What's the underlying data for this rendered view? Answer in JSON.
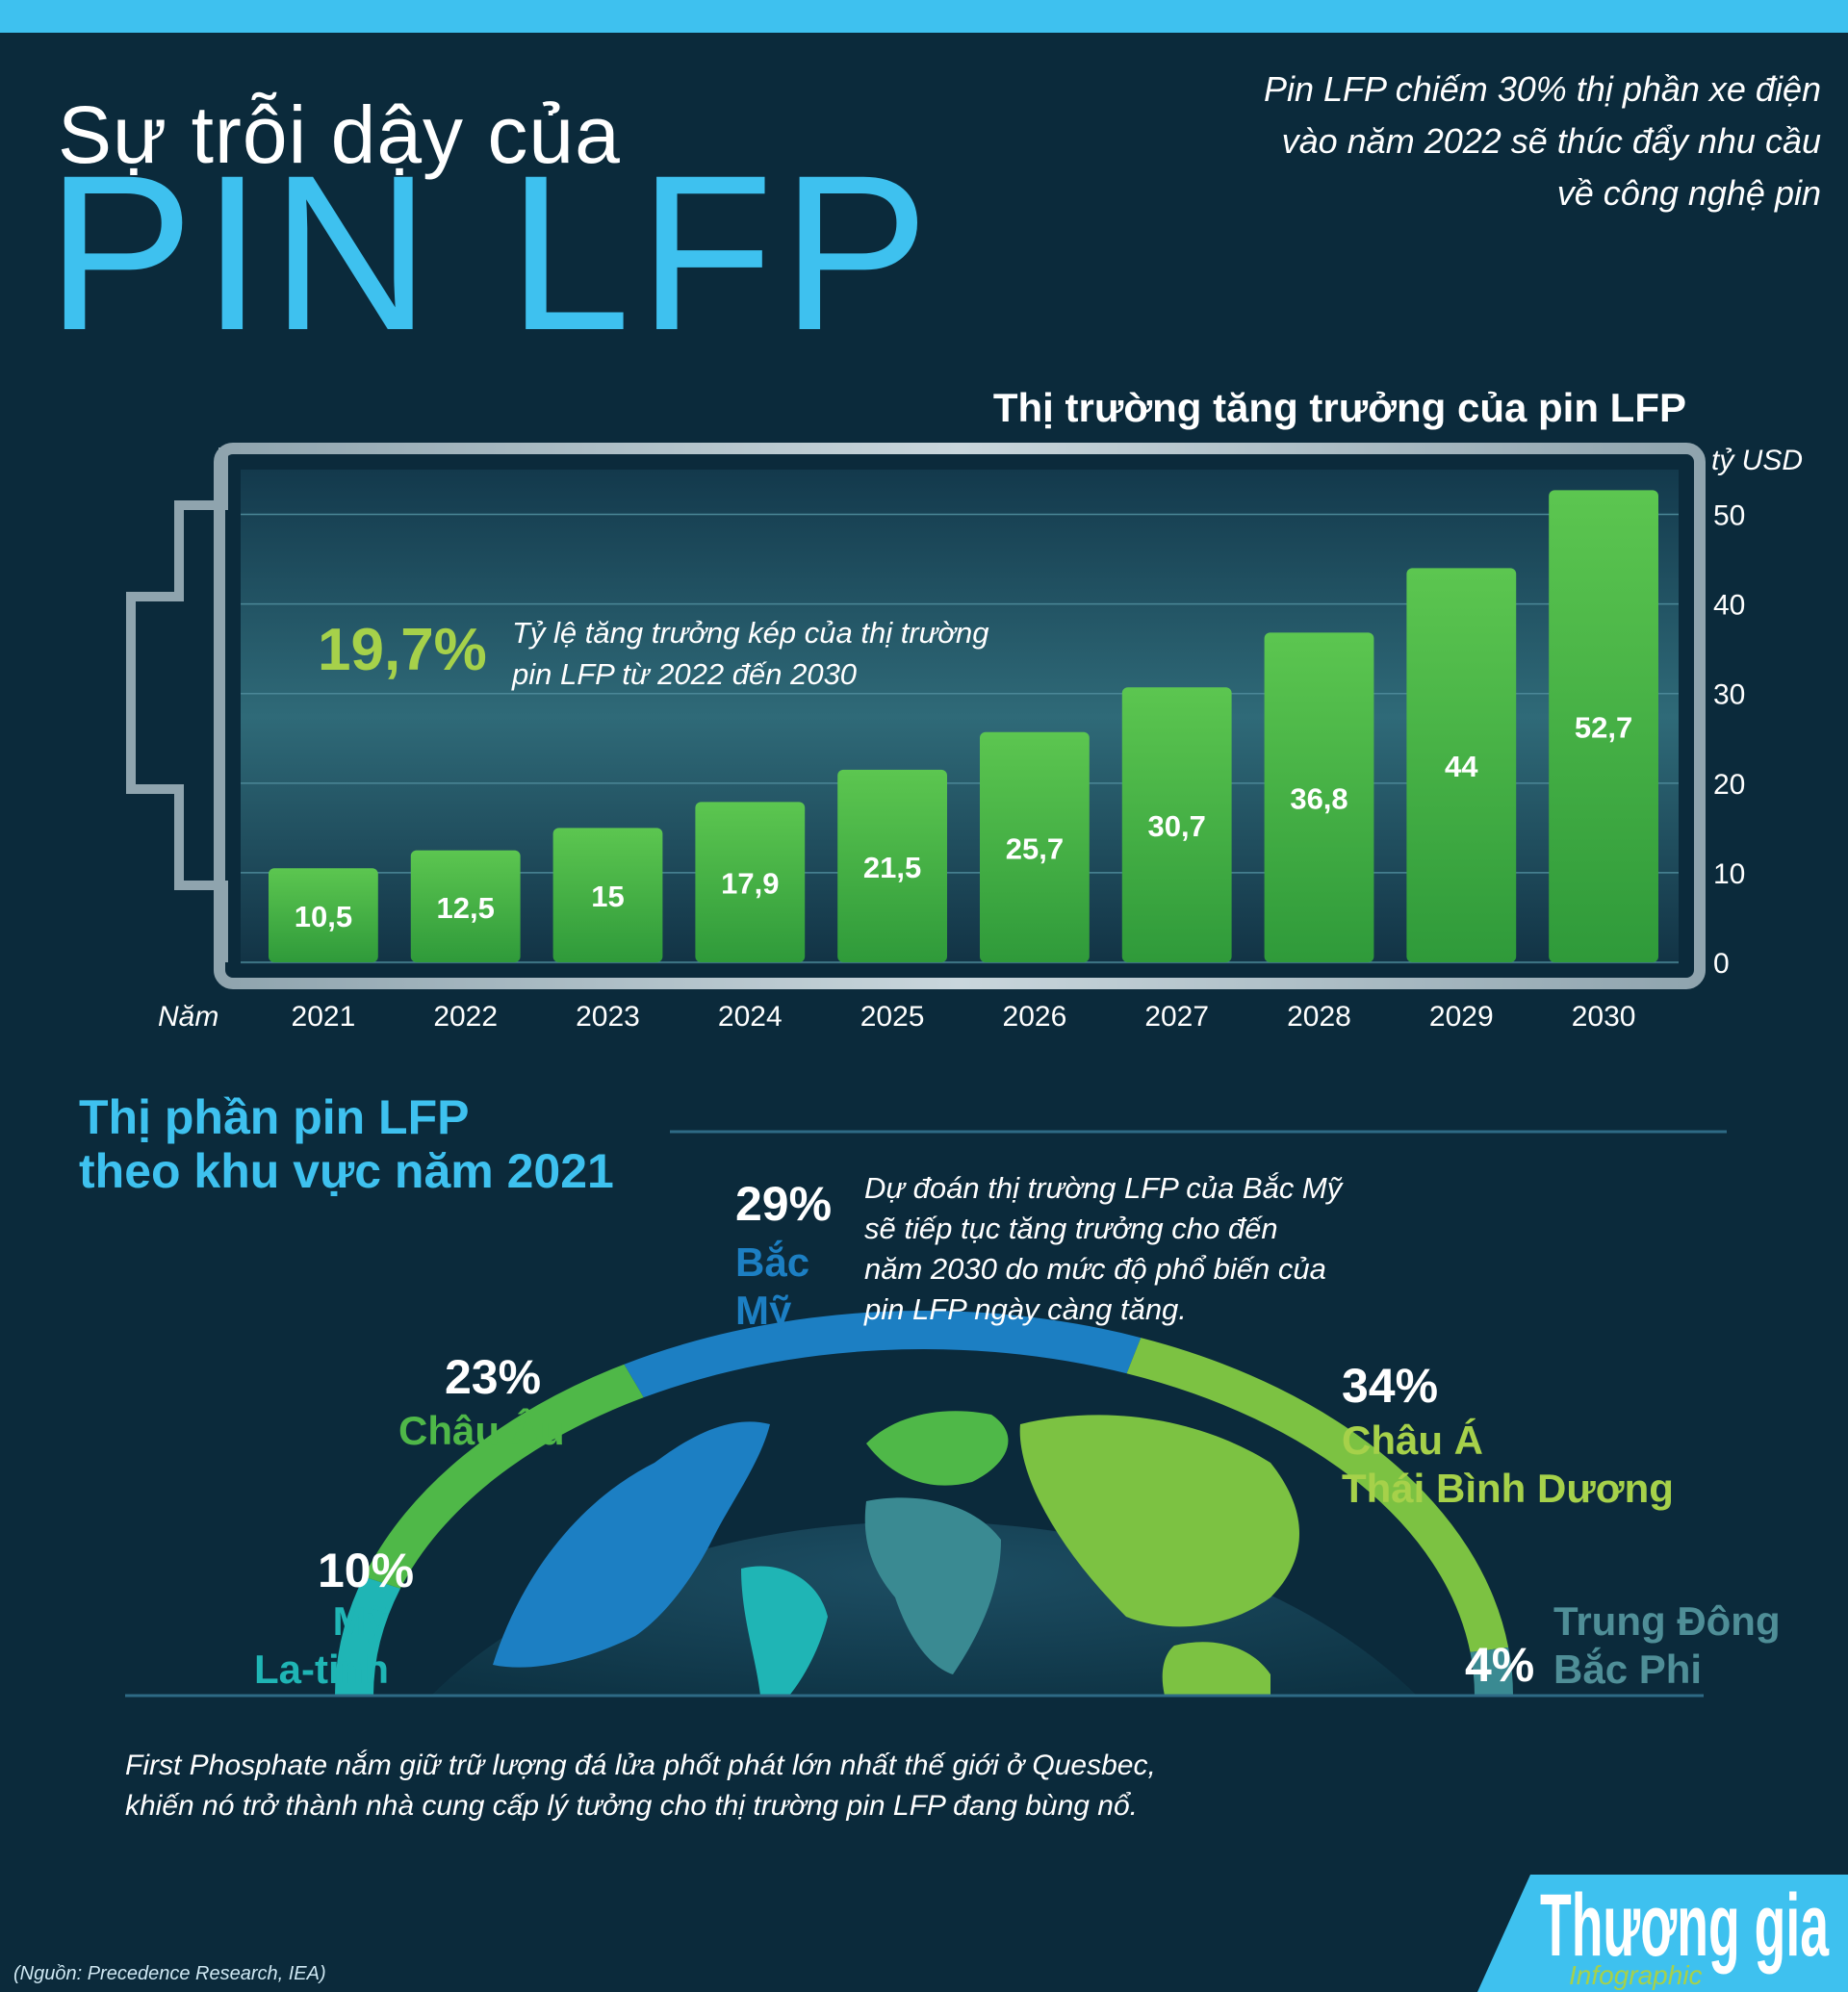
{
  "title_line1": "Sự trỗi dậy của",
  "title_line2": "PIN LFP",
  "intro": [
    "Pin LFP chiếm 30% thị phần xe điện",
    "vào năm 2022 sẽ thúc đẩy nhu cầu",
    "về công nghệ pin"
  ],
  "cagr": {
    "value": "19,7%",
    "text": [
      "Tỷ lệ tăng trưởng kép của thị trường",
      "pin LFP từ 2022 đến 2030"
    ]
  },
  "chart_data": {
    "type": "bar",
    "title": "Thị trường tăng trưởng của pin LFP",
    "unit": "tỷ USD",
    "xlabel": "Năm",
    "categories": [
      "2021",
      "2022",
      "2023",
      "2024",
      "2025",
      "2026",
      "2027",
      "2028",
      "2029",
      "2030"
    ],
    "values": [
      10.5,
      12.5,
      15,
      17.9,
      21.5,
      25.7,
      30.7,
      36.8,
      44,
      52.7
    ],
    "value_labels": [
      "10,5",
      "12,5",
      "15",
      "17,9",
      "21,5",
      "25,7",
      "30,7",
      "36,8",
      "44",
      "52,7"
    ],
    "yticks": [
      "0",
      "10",
      "20",
      "30",
      "40",
      "50"
    ],
    "ylim": [
      0,
      55
    ],
    "grid": true,
    "bar_color": "#4fb848"
  },
  "regions": {
    "title": [
      "Thị phần pin LFP",
      "theo khu vực năm 2021"
    ],
    "chart_data": {
      "type": "pie",
      "shape": "half-ring",
      "items": [
        {
          "pct": "10%",
          "value": 10,
          "name": [
            "Mỹ",
            "La-tinh"
          ],
          "color": "#1fb5b5"
        },
        {
          "pct": "23%",
          "value": 23,
          "name": [
            "Châu Âu"
          ],
          "color": "#4fb848"
        },
        {
          "pct": "29%",
          "value": 29,
          "name": [
            "Bắc",
            "Mỹ"
          ],
          "color": "#1c7fc3"
        },
        {
          "pct": "34%",
          "value": 34,
          "name": [
            "Châu Á",
            "Thái Bình Dương"
          ],
          "color": "#7cc242"
        },
        {
          "pct": "4%",
          "value": 4,
          "name": [
            "Trung Đông",
            "Bắc Phi"
          ],
          "color": "#3a8a92"
        }
      ]
    },
    "note": [
      "Dự đoán thị trường LFP của Bắc Mỹ",
      "sẽ tiếp tục tăng trưởng cho đến",
      "năm 2030 do mức độ phổ biến của",
      "pin LFP ngày càng tăng."
    ]
  },
  "footer": [
    "First Phosphate nắm giữ trữ lượng đá lửa phốt phát lớn nhất thế giới ở Quesbec,",
    "khiến nó trở thành nhà cung cấp lý tưởng cho thị trường pin LFP đang bùng nổ."
  ],
  "source": "(Nguồn: Precedence Research, IEA)",
  "logo": {
    "name": "Thương gia",
    "sub": "Infographic"
  }
}
